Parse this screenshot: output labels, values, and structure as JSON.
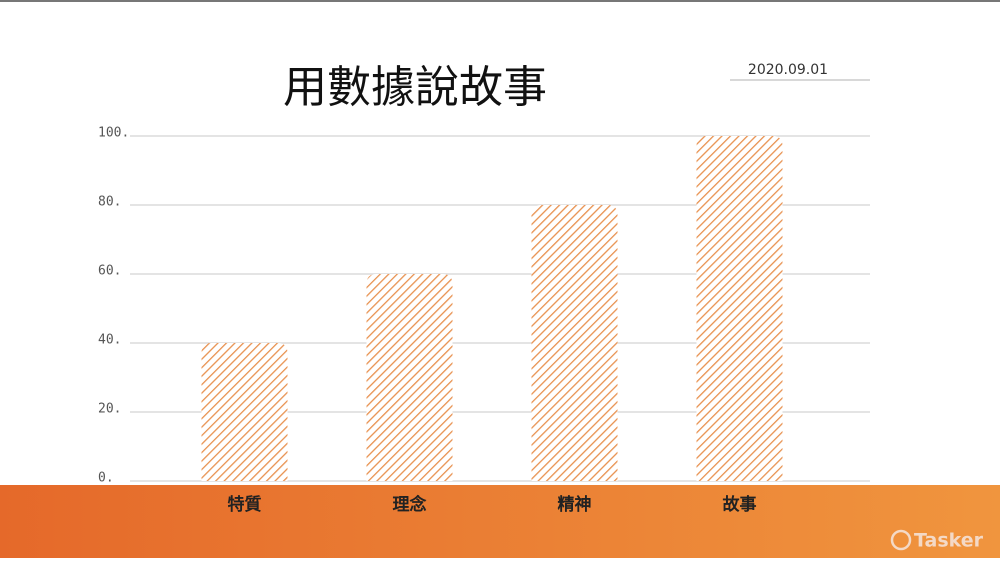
{
  "chart_data": {
    "type": "bar",
    "title": "用數據說故事",
    "subtitle": "2020.09.01",
    "categories": [
      "特質",
      "理念",
      "精神",
      "故事"
    ],
    "values": [
      40,
      60,
      80,
      100
    ],
    "color": "#e8914f",
    "ylim": [
      0,
      100
    ],
    "yticks": [
      {
        "value": 0,
        "label": "0."
      },
      {
        "value": 20,
        "label": "20."
      },
      {
        "value": 40,
        "label": "40."
      },
      {
        "value": 60,
        "label": "60."
      },
      {
        "value": 80,
        "label": "80."
      },
      {
        "value": 100,
        "label": "100."
      }
    ],
    "grid": true
  },
  "watermark": "Tasker"
}
